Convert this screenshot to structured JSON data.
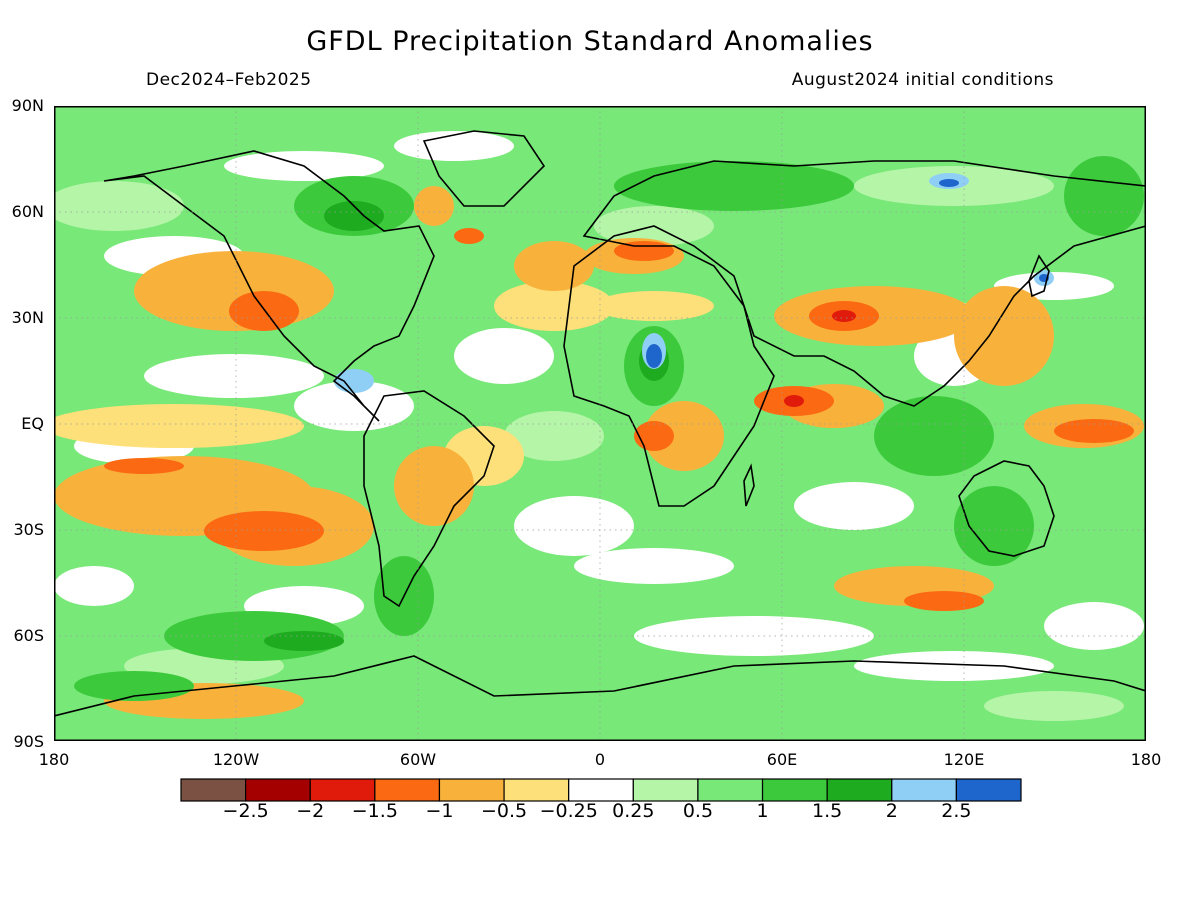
{
  "title": "GFDL Precipitation Standard Anomalies",
  "season": "Dec2024–Feb2025",
  "init": "August2024 initial conditions",
  "lat_ticks": [
    "90N",
    "60N",
    "30N",
    "EQ",
    "30S",
    "60S",
    "90S"
  ],
  "lon_ticks": [
    "180",
    "120W",
    "60W",
    "0",
    "60E",
    "120E",
    "180"
  ],
  "colorbar": {
    "colors": [
      "#7a5142",
      "#a50000",
      "#e11b0c",
      "#fb6a12",
      "#f8b23c",
      "#fde07a",
      "#ffffff",
      "#b5f5a8",
      "#78e878",
      "#3cca3c",
      "#1fab1f",
      "#8fcff5",
      "#1f66cc"
    ],
    "labels": [
      "−2.5",
      "−2",
      "−1.5",
      "−1",
      "−0.5",
      "−0.25",
      "0.25",
      "0.5",
      "1",
      "1.5",
      "2",
      "2.5"
    ]
  }
}
